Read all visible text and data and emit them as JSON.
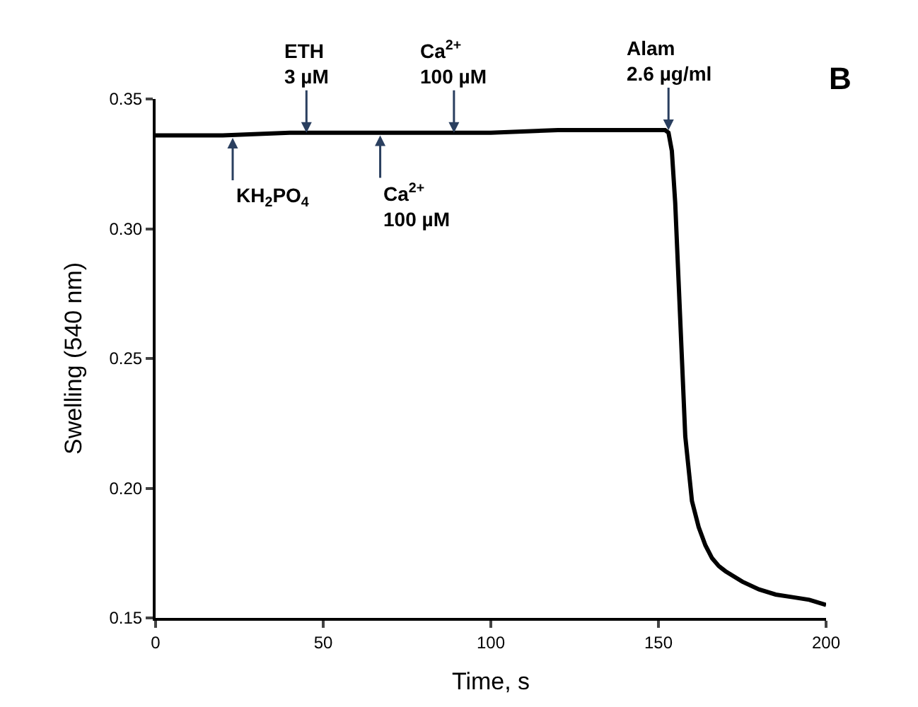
{
  "chart_data": {
    "type": "line",
    "xlabel": "Time, s",
    "ylabel": "Swelling (540 nm)",
    "xlim": [
      0,
      200
    ],
    "ylim": [
      0.15,
      0.35
    ],
    "xticks": [
      0,
      50,
      100,
      150,
      200
    ],
    "yticks": [
      {
        "value": 0.15,
        "label": "0.15"
      },
      {
        "value": 0.2,
        "label": "0.20"
      },
      {
        "value": 0.25,
        "label": "0.25"
      },
      {
        "value": 0.3,
        "label": "0.30"
      },
      {
        "value": 0.35,
        "label": "0.35"
      }
    ],
    "marker": "none",
    "line_style": "solid",
    "series": [
      {
        "color": "#000000",
        "x": [
          0,
          20,
          40,
          60,
          80,
          100,
          120,
          140,
          150,
          152,
          153,
          154,
          155,
          156,
          157,
          158,
          160,
          162,
          164,
          166,
          168,
          170,
          175,
          180,
          185,
          190,
          195,
          200
        ],
        "values": [
          0.336,
          0.336,
          0.337,
          0.337,
          0.337,
          0.337,
          0.338,
          0.338,
          0.338,
          0.338,
          0.337,
          0.33,
          0.31,
          0.28,
          0.25,
          0.22,
          0.195,
          0.185,
          0.178,
          0.173,
          0.17,
          0.168,
          0.164,
          0.161,
          0.159,
          0.158,
          0.157,
          0.155
        ]
      }
    ],
    "annotations": [
      {
        "text": "KH$_{2}$PO$_{4}$",
        "x": 23,
        "y": 0.335
      },
      {
        "text": "ETH\n3 µM",
        "x": 45,
        "y": 0.337
      },
      {
        "text": "Ca$^{2+}$\n100 µM",
        "x": 67,
        "y": 0.336
      },
      {
        "text": "Ca$^{2+}$\n100 µM",
        "x": 89,
        "y": 0.337
      },
      {
        "text": "Alam\n2.6 µg/ml",
        "x": 153,
        "y": 0.338
      },
      "B"
    ]
  }
}
